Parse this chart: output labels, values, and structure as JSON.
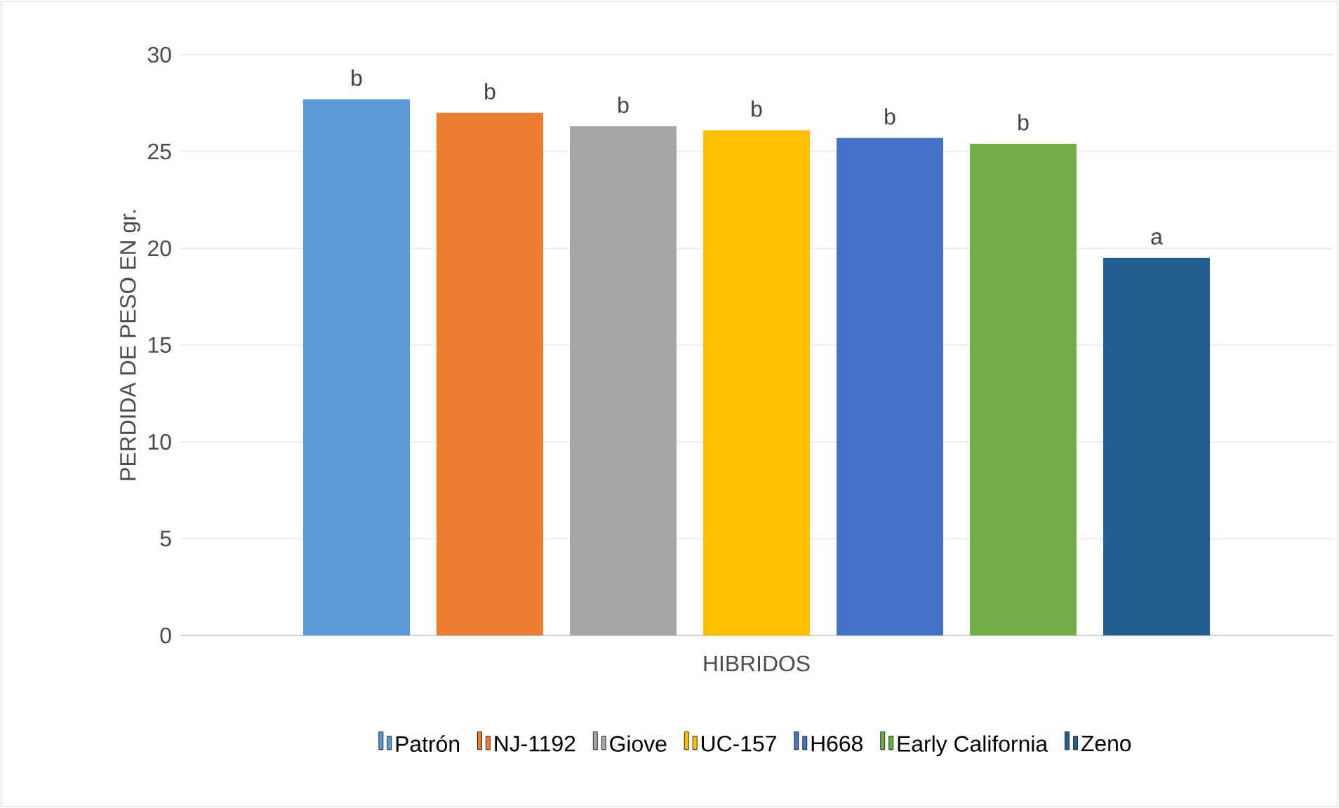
{
  "chart_data": {
    "type": "bar",
    "categories": [
      null
    ],
    "xlabel": "HIBRIDOS",
    "ylabel": "PERDIDA DE PESO EN gr.",
    "ylim": [
      0,
      30
    ],
    "yticks": [
      0,
      5,
      10,
      15,
      20,
      25,
      30
    ],
    "grid": "y",
    "legend": "bottom",
    "series": [
      {
        "name": "Patrón",
        "color": "#5b9bd5",
        "values": [
          27.7
        ],
        "value_labels": [
          "b"
        ]
      },
      {
        "name": "NJ-1192",
        "color": "#ed7d31",
        "values": [
          27.0
        ],
        "value_labels": [
          "b"
        ]
      },
      {
        "name": "Giove",
        "color": "#a5a5a5",
        "values": [
          26.3
        ],
        "value_labels": [
          "b"
        ]
      },
      {
        "name": "UC-157",
        "color": "#ffc000",
        "values": [
          26.1
        ],
        "value_labels": [
          "b"
        ]
      },
      {
        "name": "H668",
        "color": "#4472c4",
        "values": [
          25.7
        ],
        "value_labels": [
          "b"
        ]
      },
      {
        "name": "Early California",
        "color": "#70ad47",
        "values": [
          25.4
        ],
        "value_labels": [
          "b"
        ]
      },
      {
        "name": "Zeno",
        "color": "#255e91",
        "values": [
          19.5
        ],
        "value_labels": [
          "a"
        ]
      }
    ]
  }
}
